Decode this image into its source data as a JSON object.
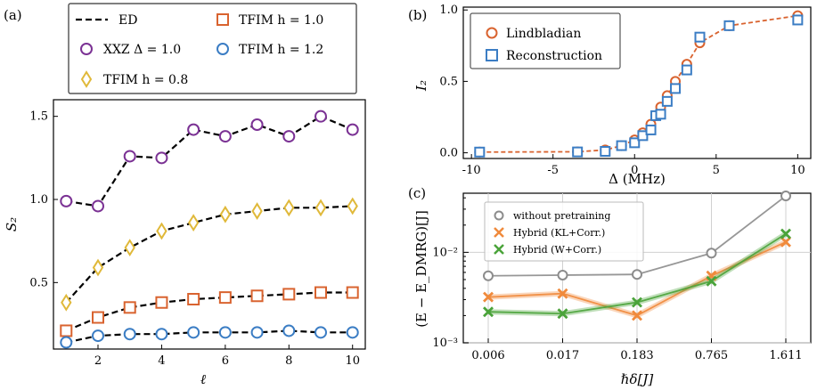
{
  "chart_data": [
    {
      "panel": "(a)",
      "type": "line",
      "xlabel": "ℓ",
      "ylabel": "S₂",
      "xlim": [
        0.6,
        10.4
      ],
      "ylim": [
        0.1,
        1.6
      ],
      "xticks": [
        2,
        4,
        6,
        8,
        10
      ],
      "yticks": [
        0.5,
        1.0,
        1.5
      ],
      "ytick_labels": [
        "0.5",
        "1.0",
        "1.5"
      ],
      "legend": [
        "ED",
        "XXZ Δ = 1.0",
        "TFIM h = 0.8",
        "TFIM h = 1.0",
        "TFIM h = 1.2"
      ],
      "legend_placement": "top (outside, above panel)",
      "x": [
        1,
        2,
        3,
        4,
        5,
        6,
        7,
        8,
        9,
        10
      ],
      "series": [
        {
          "name": "XXZ Δ = 1.0",
          "marker": "circle",
          "color": "#7b3294",
          "values": [
            0.99,
            0.96,
            1.26,
            1.25,
            1.42,
            1.38,
            1.45,
            1.38,
            1.5,
            1.42
          ]
        },
        {
          "name": "TFIM h = 0.8",
          "marker": "diamond",
          "color": "#e0b93a",
          "values": [
            0.38,
            0.59,
            0.71,
            0.81,
            0.86,
            0.91,
            0.93,
            0.95,
            0.95,
            0.96
          ]
        },
        {
          "name": "TFIM h = 1.0",
          "marker": "square",
          "color": "#d9632f",
          "values": [
            0.21,
            0.29,
            0.35,
            0.38,
            0.4,
            0.41,
            0.42,
            0.43,
            0.44,
            0.44
          ]
        },
        {
          "name": "TFIM h = 1.2",
          "marker": "circle",
          "color": "#3b7dc4",
          "values": [
            0.14,
            0.18,
            0.19,
            0.19,
            0.2,
            0.2,
            0.2,
            0.21,
            0.2,
            0.2
          ]
        }
      ]
    },
    {
      "panel": "(b)",
      "type": "line",
      "xlabel": "Δ (MHz)",
      "ylabel": "I₂",
      "xlim": [
        -10.5,
        10.8
      ],
      "ylim": [
        -0.04,
        1.02
      ],
      "xticks": [
        -10,
        -5,
        0,
        5,
        10
      ],
      "yticks": [
        0.0,
        0.5,
        1.0
      ],
      "ytick_labels": [
        "0.0",
        "0.5",
        "1.0"
      ],
      "legend": [
        "Lindbladian",
        "Reconstruction"
      ],
      "legend_placement": "top-left",
      "series": [
        {
          "name": "Lindbladian",
          "marker": "circle",
          "color": "#d9632f",
          "x": [
            -9.5,
            -3.5,
            -1.8,
            -0.8,
            0.0,
            0.5,
            1.0,
            1.3,
            1.6,
            2.0,
            2.5,
            3.2,
            4.0,
            5.8,
            10.0
          ],
          "values": [
            0.005,
            0.007,
            0.02,
            0.05,
            0.09,
            0.14,
            0.2,
            0.26,
            0.32,
            0.4,
            0.5,
            0.62,
            0.77,
            0.89,
            0.96
          ]
        },
        {
          "name": "Reconstruction",
          "marker": "square",
          "color": "#3b7dc4",
          "x": [
            -9.5,
            -3.5,
            -1.8,
            -0.8,
            0.0,
            0.5,
            1.0,
            1.3,
            1.6,
            2.0,
            2.5,
            3.2,
            4.0,
            5.8,
            10.0
          ],
          "values": [
            0.005,
            0.006,
            0.01,
            0.05,
            0.07,
            0.12,
            0.16,
            0.26,
            0.27,
            0.36,
            0.45,
            0.58,
            0.81,
            0.89,
            0.93
          ]
        }
      ]
    },
    {
      "panel": "(c)",
      "type": "line",
      "xlabel": "ℏδ[J]",
      "ylabel": "(E − E_DMRG)[J]",
      "yscale": "log",
      "ylim": [
        0.001,
        0.045
      ],
      "categories": [
        "0.006",
        "0.017",
        "0.183",
        "0.765",
        "1.611"
      ],
      "ytick_labels": [
        "10⁻³",
        "10⁻²"
      ],
      "grid": true,
      "legend": [
        "without pretraining",
        "Hybrid (KL+Corr.)",
        "Hybrid (W+Corr.)"
      ],
      "legend_placement": "top-left",
      "series": [
        {
          "name": "without pretraining",
          "marker": "circle",
          "color": "#8c8c8c",
          "values": [
            0.0055,
            0.0056,
            0.0057,
            0.0098,
            0.042
          ]
        },
        {
          "name": "Hybrid (KL+Corr.)",
          "marker": "x",
          "color": "#f08a3c",
          "values": [
            0.0032,
            0.0035,
            0.002,
            0.0055,
            0.013
          ]
        },
        {
          "name": "Hybrid (W+Corr.)",
          "marker": "x",
          "color": "#4aa33a",
          "values": [
            0.0022,
            0.0021,
            0.0028,
            0.0048,
            0.016
          ]
        }
      ]
    }
  ]
}
